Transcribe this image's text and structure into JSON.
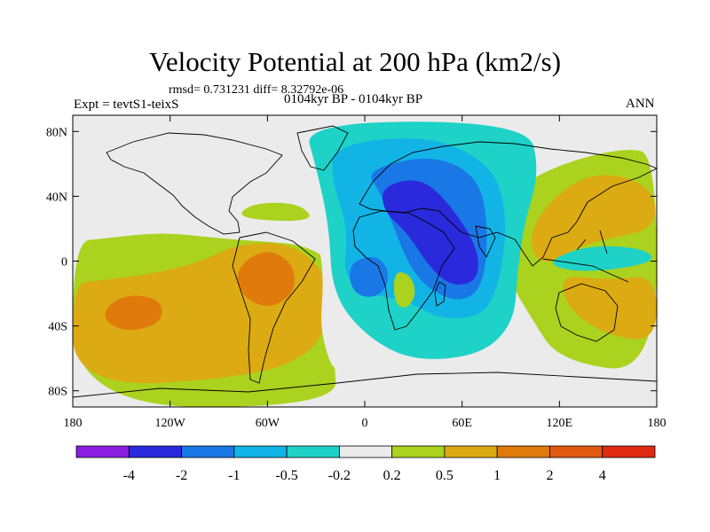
{
  "chart_data": {
    "type": "contour-map",
    "title": "Velocity Potential at 200 hPa (km2/s)",
    "subtitle_stats": "rmsd= 0.731231 diff= 8.32792e-06",
    "left_label": "Expt = tevtS1-teixS",
    "center_label": "0104kyr BP - 0104kyr BP",
    "right_label": "ANN",
    "projection": "cylindrical-equidistant",
    "lon_range": [
      -180,
      180
    ],
    "lat_range": [
      -90,
      90
    ],
    "x_ticks": [
      {
        "value": -180,
        "label": "180"
      },
      {
        "value": -120,
        "label": "120W"
      },
      {
        "value": -60,
        "label": "60W"
      },
      {
        "value": 0,
        "label": "0"
      },
      {
        "value": 60,
        "label": "60E"
      },
      {
        "value": 120,
        "label": "120E"
      },
      {
        "value": 180,
        "label": "180"
      }
    ],
    "y_ticks": [
      {
        "value": 80,
        "label": "80N"
      },
      {
        "value": 40,
        "label": "40N"
      },
      {
        "value": 0,
        "label": "0"
      },
      {
        "value": -40,
        "label": "40S"
      },
      {
        "value": -80,
        "label": "80S"
      }
    ],
    "colorbar": {
      "colors": [
        "#8a1ee0",
        "#2a2adc",
        "#1a78e6",
        "#12b4e6",
        "#1ed2c8",
        "#ebebeb",
        "#aad21e",
        "#dcaa12",
        "#e07a0c",
        "#e05a12",
        "#e02a12"
      ],
      "labels": [
        "-4",
        "-2",
        "-1",
        "-0.5",
        "-0.2",
        "0.2",
        "0.5",
        "1",
        "2",
        "4"
      ]
    },
    "regions": [
      {
        "name": "pacific-positive",
        "level": 0.35,
        "color": "#aad21e",
        "poly": [
          [
            -180,
            -90
          ],
          [
            -18,
            -90
          ],
          [
            -18,
            -60
          ],
          [
            -28,
            -42
          ],
          [
            -18,
            -20
          ],
          [
            -20,
            0
          ],
          [
            -38,
            10
          ],
          [
            -60,
            12
          ],
          [
            -90,
            14
          ],
          [
            -125,
            18
          ],
          [
            -160,
            14
          ],
          [
            -180,
            12
          ]
        ]
      },
      {
        "name": "n-atlantic-positive-ring",
        "level": 0.35,
        "color": "#aad21e",
        "poly": [
          [
            -80,
            26
          ],
          [
            -30,
            24
          ],
          [
            -40,
            36
          ],
          [
            -70,
            36
          ]
        ]
      },
      {
        "name": "s-pacific-orange",
        "level": 0.75,
        "color": "#dcaa12",
        "poly": [
          [
            -180,
            -78
          ],
          [
            -70,
            -72
          ],
          [
            -28,
            -55
          ],
          [
            -20,
            -20
          ],
          [
            -30,
            0
          ],
          [
            -50,
            12
          ],
          [
            -80,
            10
          ],
          [
            -100,
            0
          ],
          [
            -130,
            -8
          ],
          [
            -165,
            -12
          ],
          [
            -180,
            -14
          ]
        ]
      },
      {
        "name": "s-america-dark-orange",
        "level": 1.5,
        "color": "#e07a0c",
        "poly": [
          [
            -80,
            -5
          ],
          [
            -62,
            8
          ],
          [
            -45,
            0
          ],
          [
            -42,
            -18
          ],
          [
            -58,
            -30
          ],
          [
            -76,
            -22
          ]
        ]
      },
      {
        "name": "s-pacific-dark-orange",
        "level": 1.5,
        "color": "#e07a0c",
        "poly": [
          [
            -160,
            -28
          ],
          [
            -145,
            -20
          ],
          [
            -125,
            -24
          ],
          [
            -125,
            -38
          ],
          [
            -145,
            -44
          ],
          [
            -160,
            -38
          ]
        ]
      },
      {
        "name": "neutral-band",
        "level": 0.0,
        "color": "#ebebeb",
        "poly": [
          [
            -15,
            -78
          ],
          [
            95,
            -78
          ],
          [
            120,
            -62
          ],
          [
            102,
            -34
          ],
          [
            85,
            -10
          ],
          [
            100,
            20
          ],
          [
            88,
            42
          ],
          [
            95,
            62
          ],
          [
            102,
            86
          ],
          [
            -30,
            86
          ],
          [
            -42,
            52
          ],
          [
            -30,
            20
          ],
          [
            -25,
            -10
          ],
          [
            -28,
            -45
          ]
        ]
      },
      {
        "name": "n-pacific-gray",
        "level": 0.0,
        "color": "#ebebeb",
        "poly": [
          [
            -180,
            58
          ],
          [
            -130,
            62
          ],
          [
            -95,
            78
          ],
          [
            -30,
            82
          ],
          [
            -40,
            58
          ],
          [
            -72,
            48
          ],
          [
            -110,
            44
          ],
          [
            -145,
            40
          ],
          [
            -180,
            44
          ]
        ]
      },
      {
        "name": "w-pacific-yellow",
        "level": 0.35,
        "color": "#aad21e",
        "poly": [
          [
            88,
            42
          ],
          [
            120,
            60
          ],
          [
            160,
            70
          ],
          [
            180,
            66
          ],
          [
            180,
            -70
          ],
          [
            120,
            -62
          ],
          [
            102,
            -34
          ],
          [
            88,
            -10
          ],
          [
            100,
            20
          ]
        ]
      },
      {
        "name": "w-pacific-orange",
        "level": 0.75,
        "color": "#dcaa12",
        "poly": [
          [
            100,
            16
          ],
          [
            118,
            42
          ],
          [
            145,
            56
          ],
          [
            178,
            46
          ],
          [
            180,
            20
          ],
          [
            150,
            14
          ],
          [
            130,
            8
          ],
          [
            108,
            -4
          ]
        ]
      },
      {
        "name": "w-pacific-orange-south",
        "level": 0.75,
        "color": "#dcaa12",
        "poly": [
          [
            120,
            -8
          ],
          [
            150,
            -12
          ],
          [
            180,
            -8
          ],
          [
            180,
            -50
          ],
          [
            150,
            -46
          ],
          [
            125,
            -30
          ]
        ]
      },
      {
        "name": "africa-asia-teal",
        "level": -0.35,
        "color": "#1ed2c8",
        "poly": [
          [
            -38,
            86
          ],
          [
            100,
            86
          ],
          [
            108,
            56
          ],
          [
            98,
            22
          ],
          [
            94,
            -8
          ],
          [
            92,
            -38
          ],
          [
            72,
            -58
          ],
          [
            30,
            -62
          ],
          [
            0,
            -46
          ],
          [
            -20,
            -20
          ],
          [
            -22,
            22
          ],
          [
            -30,
            58
          ]
        ]
      },
      {
        "name": "africa-asia-cyan",
        "level": -0.75,
        "color": "#12b4e6",
        "poly": [
          [
            -20,
            72
          ],
          [
            40,
            78
          ],
          [
            78,
            60
          ],
          [
            88,
            30
          ],
          [
            84,
            -10
          ],
          [
            74,
            -34
          ],
          [
            46,
            -36
          ],
          [
            30,
            -26
          ],
          [
            -14,
            -16
          ],
          [
            -10,
            20
          ],
          [
            -20,
            48
          ]
        ]
      },
      {
        "name": "africa-asia-blue",
        "level": -1.5,
        "color": "#1a78e6",
        "poly": [
          [
            0,
            56
          ],
          [
            40,
            66
          ],
          [
            68,
            54
          ],
          [
            76,
            28
          ],
          [
            74,
            -14
          ],
          [
            60,
            -26
          ],
          [
            40,
            -18
          ],
          [
            28,
            -4
          ],
          [
            18,
            20
          ],
          [
            10,
            42
          ]
        ]
      },
      {
        "name": "guinea-blue",
        "level": -1.5,
        "color": "#1a78e6",
        "poly": [
          [
            -8,
            0
          ],
          [
            8,
            4
          ],
          [
            16,
            -8
          ],
          [
            10,
            -22
          ],
          [
            -4,
            -22
          ],
          [
            -10,
            -12
          ]
        ]
      },
      {
        "name": "indian-ocean-core",
        "level": -3.0,
        "color": "#2a2adc",
        "poly": [
          [
            10,
            46
          ],
          [
            34,
            52
          ],
          [
            52,
            36
          ],
          [
            70,
            8
          ],
          [
            70,
            -12
          ],
          [
            54,
            -16
          ],
          [
            40,
            -4
          ],
          [
            26,
            18
          ],
          [
            12,
            30
          ]
        ]
      },
      {
        "name": "madagascar-yellow",
        "level": 0.35,
        "color": "#aad21e",
        "poly": [
          [
            18,
            -6
          ],
          [
            28,
            -8
          ],
          [
            32,
            -20
          ],
          [
            26,
            -30
          ],
          [
            18,
            -26
          ]
        ]
      },
      {
        "name": "w-pacific-teal-tongue",
        "level": -0.35,
        "color": "#1ed2c8",
        "poly": [
          [
            112,
            0
          ],
          [
            138,
            10
          ],
          [
            172,
            8
          ],
          [
            180,
            0
          ],
          [
            150,
            -6
          ],
          [
            124,
            -6
          ]
        ]
      }
    ]
  }
}
